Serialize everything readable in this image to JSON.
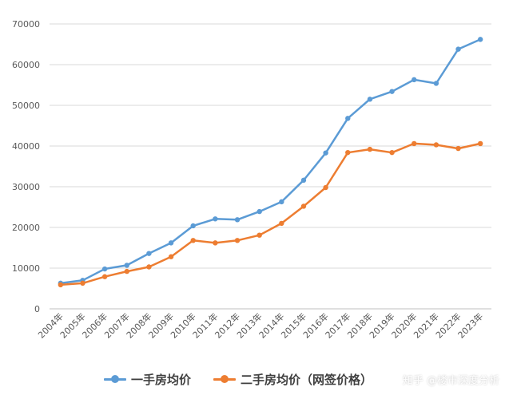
{
  "chart_data": {
    "type": "line",
    "title": "",
    "xlabel": "",
    "ylabel": "",
    "ylim": [
      0,
      70000
    ],
    "yticks": [
      0,
      10000,
      20000,
      30000,
      40000,
      50000,
      60000,
      70000
    ],
    "grid": true,
    "legend_position": "bottom",
    "categories": [
      "2004年",
      "2005年",
      "2006年",
      "2007年",
      "2008年",
      "2009年",
      "2010年",
      "2011年",
      "2012年",
      "2013年",
      "2014年",
      "2015年",
      "2016年",
      "2017年",
      "2018年",
      "2019年",
      "2020年",
      "2021年",
      "2022年",
      "2023年"
    ],
    "series": [
      {
        "name": "一手房均价",
        "color": "#5B9BD5",
        "values": [
          6300,
          7000,
          9800,
          10700,
          13600,
          16200,
          20400,
          22100,
          21900,
          23900,
          26300,
          31600,
          38300,
          46800,
          51500,
          53400,
          56300,
          55400,
          63800,
          66200
        ]
      },
      {
        "name": "二手房均价（网签价格）",
        "color": "#ED7D31",
        "values": [
          5900,
          6300,
          7900,
          9200,
          10300,
          12800,
          16800,
          16200,
          16800,
          18100,
          21000,
          25200,
          29800,
          38400,
          39200,
          38400,
          40600,
          40300,
          39400,
          40600
        ]
      }
    ]
  },
  "watermark": {
    "icon": "zhihu-logo",
    "text": "知乎 @楼市深度分析"
  }
}
